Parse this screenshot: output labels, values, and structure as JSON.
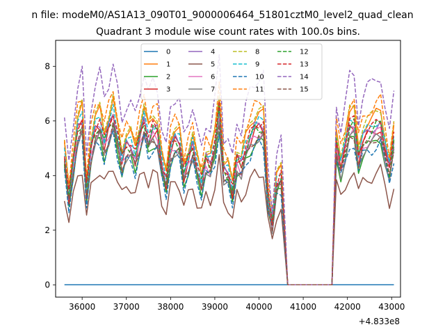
{
  "header": {
    "suptitle": "n file: modeM0/AS1A13_090T01_9000006464_51801cztM0_level2_quad_clean",
    "title": "Quadrant 3 module wise count rates with 100.0s bins.",
    "offset_text": "+4.833e8"
  },
  "chart_data": {
    "type": "line",
    "xlim": [
      35400,
      43200
    ],
    "ylim": [
      -0.45,
      8.95
    ],
    "x_offset": 483300000,
    "xticks": [
      36000,
      37000,
      38000,
      39000,
      40000,
      41000,
      42000,
      43000
    ],
    "xtick_labels": [
      "36000",
      "37000",
      "38000",
      "39000",
      "40000",
      "41000",
      "42000",
      "43000"
    ],
    "yticks": [
      0,
      2,
      4,
      6,
      8
    ],
    "ytick_labels": [
      "0",
      "2",
      "4",
      "6",
      "8"
    ],
    "grid": false,
    "legend_placement": "upper-center",
    "legend_columns": 4,
    "x_segments": [
      {
        "start": 35600,
        "end": 40550,
        "step": 100
      },
      {
        "start": 40650,
        "end": 41650,
        "step": 100
      },
      {
        "start": 41750,
        "end": 43050,
        "step": 100
      }
    ],
    "profile_a": [
      4.6,
      3.2,
      4.4,
      5.6,
      5.9,
      3.4,
      4.9,
      5.6,
      5.8,
      5.1,
      5.6,
      6.1,
      5.3,
      4.5,
      5.0,
      5.0,
      4.6,
      5.3,
      5.9,
      5.2,
      5.6,
      5.5,
      4.3,
      3.7,
      4.9,
      5.2,
      5.1,
      4.0,
      4.5,
      5.0,
      4.2,
      3.7,
      4.5,
      4.3,
      5.0,
      6.3,
      4.1,
      4.0,
      3.4,
      4.5,
      4.3,
      4.9,
      5.3,
      5.6,
      5.7,
      5.7,
      3.2,
      2.2,
      3.6,
      3.9,
      4.3,
      5.4,
      5.0,
      4.9,
      5.5,
      3.6,
      4.1,
      3.2,
      3.2,
      3.6,
      4.8
    ],
    "profile_b": [
      5.1,
      4.3,
      4.9,
      5.7,
      5.8,
      4.6,
      5.2,
      5.4,
      5.5,
      5.7,
      5.8,
      4.9,
      4.1,
      5.2,
      4.8,
      4.5,
      4.1,
      5.5,
      5.6,
      4.9,
      5.1,
      4.6,
      5.5,
      5.8,
      5.3
    ],
    "series": [
      {
        "name": "0",
        "color": "#1f77b4",
        "dash": "solid",
        "scale": 0.0,
        "wobble": 0.0
      },
      {
        "name": "1",
        "color": "#ff7f0e",
        "dash": "solid",
        "scale": 1.1,
        "wobble": 0.2
      },
      {
        "name": "2",
        "color": "#2ca02c",
        "dash": "solid",
        "scale": 0.92,
        "wobble": 0.2
      },
      {
        "name": "3",
        "color": "#d62728",
        "dash": "solid",
        "scale": 1.0,
        "wobble": 0.25
      },
      {
        "name": "4",
        "color": "#9467bd",
        "dash": "solid",
        "scale": 1.03,
        "wobble": 0.2
      },
      {
        "name": "5",
        "color": "#8c564b",
        "dash": "solid",
        "scale": 0.72,
        "wobble": 0.25
      },
      {
        "name": "6",
        "color": "#e377c2",
        "dash": "solid",
        "scale": 0.97,
        "wobble": 0.2
      },
      {
        "name": "7",
        "color": "#7f7f7f",
        "dash": "solid",
        "scale": 0.94,
        "wobble": 0.2
      },
      {
        "name": "8",
        "color": "#bcbd22",
        "dash": "dashed",
        "scale": 1.12,
        "wobble": 0.2
      },
      {
        "name": "9",
        "color": "#17becf",
        "dash": "dashed",
        "scale": 1.05,
        "wobble": 0.2
      },
      {
        "name": "10",
        "color": "#1f77b4",
        "dash": "dashed",
        "scale": 0.9,
        "wobble": 0.25
      },
      {
        "name": "11",
        "color": "#ff7f0e",
        "dash": "dashed",
        "scale": 1.17,
        "wobble": 0.2
      },
      {
        "name": "12",
        "color": "#2ca02c",
        "dash": "dashed",
        "scale": 1.01,
        "wobble": 0.25
      },
      {
        "name": "13",
        "color": "#d62728",
        "dash": "dashed",
        "scale": 1.04,
        "wobble": 0.2
      },
      {
        "name": "14",
        "color": "#9467bd",
        "dash": "dashed",
        "scale": 1.33,
        "wobble": 0.3
      },
      {
        "name": "15",
        "color": "#8c564b",
        "dash": "dashed",
        "scale": 0.95,
        "wobble": 0.2
      }
    ]
  }
}
